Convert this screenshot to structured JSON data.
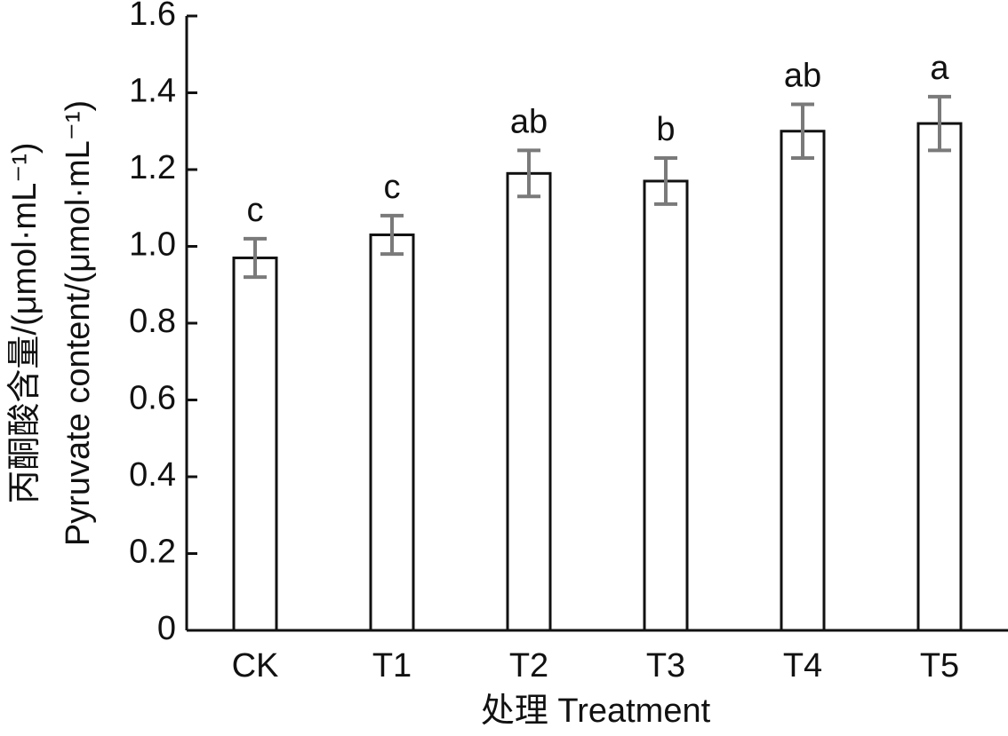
{
  "chart_data": {
    "type": "bar",
    "x_label": "处理 Treatment",
    "y_label": [
      "丙酮酸含量/(μmol·mL⁻¹)",
      "Pyruvate content/(μmol·mL⁻¹)"
    ],
    "categories": [
      "CK",
      "T1",
      "T2",
      "T3",
      "T4",
      "T5"
    ],
    "values": [
      0.97,
      1.03,
      1.19,
      1.17,
      1.3,
      1.32
    ],
    "errors": [
      0.05,
      0.05,
      0.06,
      0.06,
      0.07,
      0.07
    ],
    "labels": [
      "c",
      "c",
      "ab",
      "b",
      "ab",
      "a"
    ],
    "color": "#ffffff",
    "edge_color": "#111111",
    "error_color": "#7a7a7a",
    "ylim": [
      0,
      1.6
    ],
    "yticks": [
      0,
      0.2,
      0.4,
      0.6,
      0.8,
      {
        "value": 1,
        "label": "1.0"
      },
      1.2,
      1.4,
      1.6
    ]
  }
}
